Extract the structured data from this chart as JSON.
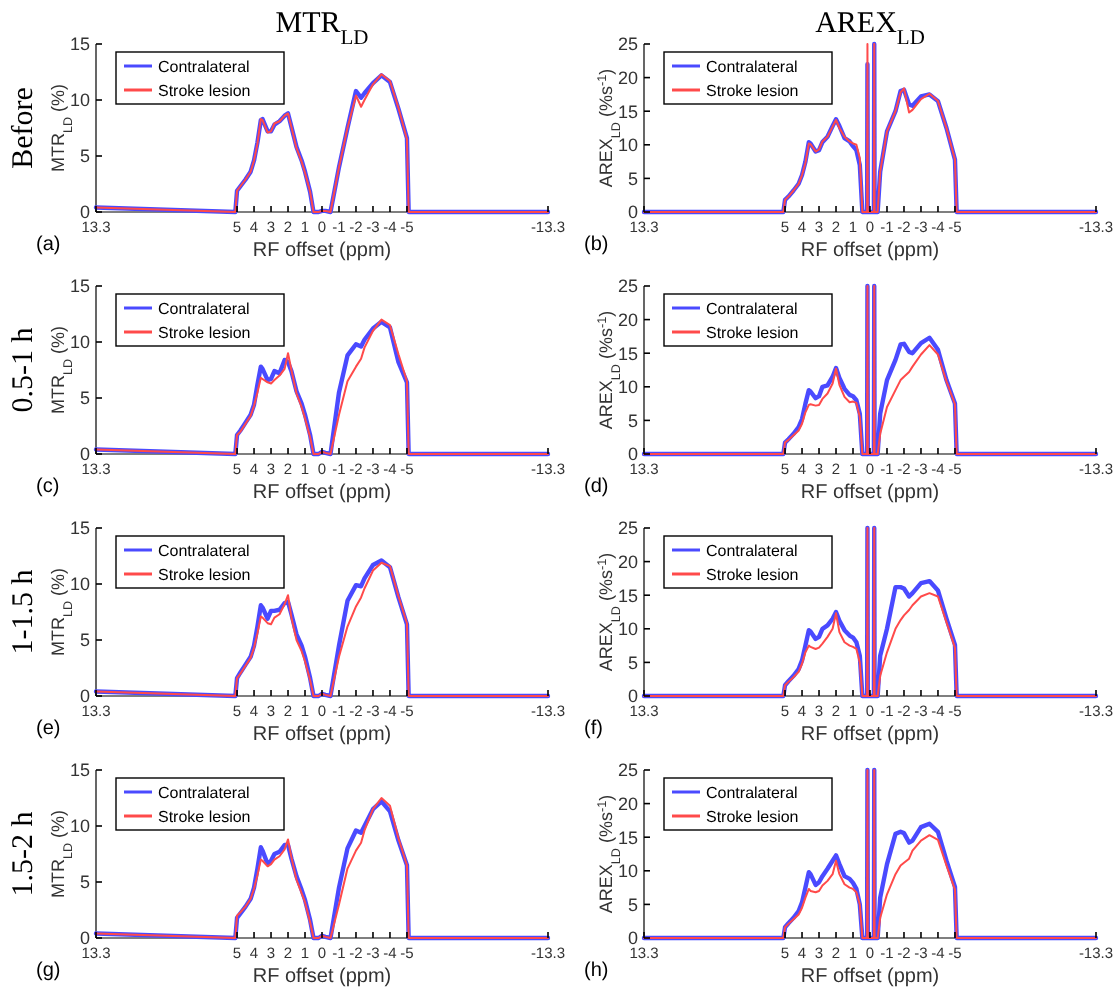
{
  "chart_data": [
    {
      "type": "line",
      "title": "MTR$_{LD}$",
      "xlabel": "RF offset (ppm)",
      "ylabel": "MTR$_{LD}$ (%)",
      "annotations": [
        "(a)",
        "Before"
      ],
      "legend": "top left",
      "xlim": [
        13.3,
        -13.3
      ],
      "xticks": [
        13.3,
        5,
        4,
        3,
        2,
        1,
        0,
        -1,
        -2,
        -3,
        -4,
        -5,
        -13.3
      ],
      "ylim": [
        0,
        15
      ],
      "yticks": [
        0,
        5,
        10,
        15
      ],
      "x": [
        13.3,
        5.1,
        5,
        4.8,
        4.5,
        4.2,
        4,
        3.8,
        3.6,
        3.5,
        3.2,
        3,
        2.8,
        2.5,
        2.2,
        2,
        1.8,
        1.5,
        1.2,
        1,
        0.7,
        0.5,
        0.2,
        0,
        -0.2,
        -0.5,
        -1,
        -1.5,
        -2,
        -2.3,
        -2.5,
        -3,
        -3.5,
        -4,
        -4.5,
        -5,
        -5.1,
        -13.3
      ],
      "series": [
        {
          "name": "Contralateral",
          "color": "#4a4aff",
          "values": [
            0.4,
            0,
            1.9,
            2.3,
            2.9,
            3.6,
            4.6,
            6.2,
            8.2,
            8.3,
            7.2,
            7.2,
            7.8,
            8.1,
            8.6,
            8.8,
            7.6,
            5.8,
            4.6,
            3.6,
            1.8,
            0,
            0,
            0.1,
            0.1,
            0,
            4,
            7.5,
            10.8,
            10.2,
            10.6,
            11.5,
            12.2,
            11.6,
            9.2,
            6.6,
            0,
            0
          ]
        },
        {
          "name": "Stroke lesion",
          "color": "#ff4a4a",
          "values": [
            0.4,
            0,
            1.9,
            2.3,
            2.9,
            3.6,
            4.6,
            6.1,
            8.3,
            8.2,
            7.1,
            7.2,
            7.9,
            8.1,
            8.6,
            8.8,
            7.6,
            5.7,
            4.5,
            3.5,
            1.8,
            0,
            0,
            0.1,
            0.1,
            0,
            4,
            7.5,
            10.4,
            9.4,
            10,
            11.4,
            12.3,
            11.7,
            9.3,
            6.5,
            0,
            0
          ]
        }
      ]
    },
    {
      "type": "line",
      "title": "AREX$_{LD}$",
      "xlabel": "RF offset (ppm)",
      "ylabel": "AREX$_{LD}$ (%s$^{-1}$)",
      "annotations": [
        "(b)"
      ],
      "legend": "top left",
      "xlim": [
        13.3,
        -13.3
      ],
      "xticks": [
        13.3,
        5,
        4,
        3,
        2,
        1,
        0,
        -1,
        -2,
        -3,
        -4,
        -5,
        -13.3
      ],
      "ylim": [
        0,
        25
      ],
      "yticks": [
        0,
        5,
        10,
        15,
        20,
        25
      ],
      "x": [
        13.3,
        5.1,
        5,
        4.8,
        4.5,
        4.2,
        4,
        3.8,
        3.6,
        3.5,
        3.2,
        3,
        2.8,
        2.5,
        2.2,
        2,
        1.8,
        1.5,
        1.2,
        1,
        0.8,
        0.6,
        0.45,
        0.17,
        0.15,
        0.13,
        -0.23,
        -0.25,
        -0.27,
        -0.45,
        -0.6,
        -1,
        -1.5,
        -1.8,
        -2,
        -2.3,
        -2.5,
        -3,
        -3.5,
        -4,
        -4.5,
        -5,
        -5.1,
        -13.3
      ],
      "series": [
        {
          "name": "Contralateral",
          "color": "#4a4aff",
          "values": [
            0,
            0,
            1.8,
            2.3,
            3.2,
            4.2,
            5.5,
            7.5,
            10.4,
            10.2,
            9.0,
            9.2,
            10.4,
            11.2,
            12.8,
            13.8,
            12.8,
            11.0,
            10.5,
            9.8,
            9.2,
            7,
            0,
            0,
            22,
            0,
            0,
            25,
            0,
            0,
            6,
            12,
            15,
            18,
            18.2,
            16,
            15.8,
            17.2,
            17.5,
            16.5,
            12.5,
            7.8,
            0,
            0
          ]
        },
        {
          "name": "Stroke lesion",
          "color": "#ff4a4a",
          "values": [
            0,
            0,
            1.8,
            2.3,
            3.2,
            4.2,
            5.5,
            7.3,
            10.2,
            10.1,
            9.0,
            9.3,
            10.5,
            11.2,
            12.7,
            13.7,
            12.5,
            11.2,
            10.5,
            10.2,
            10.0,
            8,
            0,
            0,
            25,
            0,
            0,
            25,
            0,
            0,
            6,
            12,
            15,
            17.8,
            18.4,
            14.8,
            15.2,
            16.8,
            17.6,
            16.5,
            12.5,
            7.8,
            0,
            0
          ]
        }
      ]
    },
    {
      "type": "line",
      "xlabel": "RF offset (ppm)",
      "ylabel": "MTR$_{LD}$ (%)",
      "annotations": [
        "(c)",
        "0.5-1 h"
      ],
      "legend": "top left",
      "xlim": [
        13.3,
        -13.3
      ],
      "xticks": [
        13.3,
        5,
        4,
        3,
        2,
        1,
        0,
        -1,
        -2,
        -3,
        -4,
        -5,
        -13.3
      ],
      "ylim": [
        0,
        15
      ],
      "yticks": [
        0,
        5,
        10,
        15
      ],
      "x": [
        13.3,
        5.1,
        5,
        4.8,
        4.5,
        4.2,
        4,
        3.8,
        3.6,
        3.5,
        3.2,
        3,
        2.8,
        2.5,
        2.2,
        2,
        1.8,
        1.5,
        1.2,
        1,
        0.7,
        0.5,
        0.2,
        0,
        -0.2,
        -0.5,
        -1,
        -1.5,
        -2,
        -2.3,
        -2.5,
        -3,
        -3.5,
        -4,
        -4.5,
        -5,
        -5.1,
        -13.3
      ],
      "series": [
        {
          "name": "Contralateral",
          "color": "#4a4aff",
          "values": [
            0.4,
            0,
            1.7,
            2.1,
            2.8,
            3.5,
            4.4,
            6.2,
            7.8,
            7.6,
            6.6,
            6.7,
            7.4,
            7.2,
            8.4,
            8.2,
            7.4,
            5.6,
            4.5,
            3.5,
            1.7,
            0,
            0,
            0.2,
            0.1,
            0,
            5.5,
            8.8,
            9.8,
            9.6,
            10.2,
            11.2,
            11.8,
            11.3,
            8.2,
            6.4,
            0,
            0
          ]
        },
        {
          "name": "Stroke lesion",
          "color": "#ff4a4a",
          "values": [
            0.4,
            0,
            1.7,
            2.0,
            2.7,
            3.4,
            4.3,
            5.5,
            6.8,
            6.7,
            6.4,
            6.3,
            6.6,
            7.0,
            7.6,
            9.0,
            7.5,
            5.4,
            4.2,
            3.2,
            1.5,
            0,
            0,
            0.2,
            0.1,
            0,
            3.5,
            6.5,
            7.8,
            8.5,
            9.5,
            11.0,
            12.0,
            11.5,
            8.9,
            6.5,
            0,
            0
          ]
        }
      ]
    },
    {
      "type": "line",
      "xlabel": "RF offset (ppm)",
      "ylabel": "AREX$_{LD}$ (%s$^{-1}$)",
      "annotations": [
        "(d)"
      ],
      "legend": "top left",
      "xlim": [
        13.3,
        -13.3
      ],
      "xticks": [
        13.3,
        5,
        4,
        3,
        2,
        1,
        0,
        -1,
        -2,
        -3,
        -4,
        -5,
        -13.3
      ],
      "ylim": [
        0,
        25
      ],
      "yticks": [
        0,
        5,
        10,
        15,
        20,
        25
      ],
      "x": [
        13.3,
        5.1,
        5,
        4.8,
        4.5,
        4.2,
        4,
        3.8,
        3.6,
        3.5,
        3.2,
        3,
        2.8,
        2.5,
        2.2,
        2,
        1.8,
        1.5,
        1.2,
        1,
        0.8,
        0.6,
        0.45,
        0.17,
        0.15,
        0.13,
        -0.23,
        -0.25,
        -0.27,
        -0.45,
        -0.6,
        -1,
        -1.5,
        -1.8,
        -2,
        -2.3,
        -2.5,
        -3,
        -3.5,
        -4,
        -4.5,
        -5,
        -5.1,
        -13.3
      ],
      "series": [
        {
          "name": "Contralateral",
          "color": "#4a4aff",
          "values": [
            0,
            0,
            1.7,
            2.2,
            3.0,
            4.0,
            5.2,
            7.5,
            9.5,
            9.3,
            8.3,
            8.6,
            10,
            10.2,
            11.5,
            12.8,
            11.3,
            9.7,
            8.8,
            8.6,
            8.0,
            6,
            0,
            0,
            25,
            0,
            0,
            25,
            0,
            0,
            6,
            11,
            14,
            16.3,
            16.4,
            15.2,
            15,
            16.5,
            17.3,
            15.5,
            11,
            7.5,
            0,
            0
          ]
        },
        {
          "name": "Stroke lesion",
          "color": "#ff4a4a",
          "values": [
            0,
            0,
            1.7,
            2.1,
            2.8,
            3.5,
            4.5,
            6.2,
            7.3,
            7.4,
            7.2,
            7.3,
            8.2,
            9.0,
            10.5,
            12.7,
            10.3,
            8.5,
            7.7,
            7.8,
            7.6,
            5.5,
            0,
            0,
            25,
            0,
            0,
            25,
            0,
            0,
            3,
            7,
            9.5,
            11,
            11.5,
            12.2,
            13,
            14.8,
            16.2,
            14.8,
            10.8,
            7.4,
            0,
            0
          ]
        }
      ]
    },
    {
      "type": "line",
      "xlabel": "RF offset (ppm)",
      "ylabel": "MTR$_{LD}$ (%)",
      "annotations": [
        "(e)",
        "1-1.5 h"
      ],
      "legend": "top left",
      "xlim": [
        13.3,
        -13.3
      ],
      "xticks": [
        13.3,
        5,
        4,
        3,
        2,
        1,
        0,
        -1,
        -2,
        -3,
        -4,
        -5,
        -13.3
      ],
      "ylim": [
        0,
        15
      ],
      "yticks": [
        0,
        5,
        10,
        15
      ],
      "x": [
        13.3,
        5.1,
        5,
        4.8,
        4.5,
        4.2,
        4,
        3.8,
        3.6,
        3.5,
        3.2,
        3,
        2.8,
        2.5,
        2.2,
        2,
        1.8,
        1.5,
        1.2,
        1,
        0.7,
        0.5,
        0.2,
        0,
        -0.2,
        -0.5,
        -1,
        -1.5,
        -2,
        -2.3,
        -2.5,
        -3,
        -3.5,
        -4,
        -4.5,
        -5,
        -5.1,
        -13.3
      ],
      "series": [
        {
          "name": "Contralateral",
          "color": "#4a4aff",
          "values": [
            0.4,
            0,
            1.6,
            2.1,
            2.8,
            3.5,
            4.5,
            6.2,
            8.1,
            7.9,
            6.9,
            7.6,
            7.6,
            7.7,
            8.3,
            8.4,
            7.3,
            5.5,
            4.5,
            3.5,
            1.6,
            0,
            0,
            0.2,
            0.1,
            0,
            4.5,
            8.5,
            9.9,
            9.8,
            10.5,
            11.7,
            12.1,
            11.5,
            8.8,
            6.4,
            0,
            0
          ]
        },
        {
          "name": "Stroke lesion",
          "color": "#ff4a4a",
          "values": [
            0.4,
            0,
            1.6,
            2.0,
            2.7,
            3.4,
            4.3,
            5.6,
            7.1,
            7.0,
            6.5,
            6.4,
            7.0,
            7.3,
            8.2,
            9.0,
            7.0,
            5.0,
            4.0,
            3.1,
            1.4,
            0,
            0,
            0.2,
            0.1,
            0,
            3.5,
            6.2,
            8.0,
            8.8,
            9.6,
            11.2,
            11.9,
            11.6,
            8.9,
            6.5,
            0,
            0
          ]
        }
      ]
    },
    {
      "type": "line",
      "xlabel": "RF offset (ppm)",
      "ylabel": "AREX$_{LD}$ (%s$^{-1}$)",
      "annotations": [
        "(f)"
      ],
      "legend": "top left",
      "xlim": [
        13.3,
        -13.3
      ],
      "xticks": [
        13.3,
        5,
        4,
        3,
        2,
        1,
        0,
        -1,
        -2,
        -3,
        -4,
        -5,
        -13.3
      ],
      "ylim": [
        0,
        25
      ],
      "yticks": [
        0,
        5,
        10,
        15,
        20,
        25
      ],
      "x": [
        13.3,
        5.1,
        5,
        4.8,
        4.5,
        4.2,
        4,
        3.8,
        3.6,
        3.5,
        3.2,
        3,
        2.8,
        2.5,
        2.2,
        2,
        1.8,
        1.5,
        1.2,
        1,
        0.8,
        0.6,
        0.45,
        0.17,
        0.15,
        0.13,
        -0.23,
        -0.25,
        -0.27,
        -0.45,
        -0.6,
        -1,
        -1.5,
        -1.8,
        -2,
        -2.3,
        -2.5,
        -3,
        -3.5,
        -4,
        -4.5,
        -5,
        -5.1,
        -13.3
      ],
      "series": [
        {
          "name": "Contralateral",
          "color": "#4a4aff",
          "values": [
            0,
            0,
            1.6,
            2.2,
            3.0,
            4.0,
            5.3,
            7.5,
            9.8,
            9.6,
            8.5,
            8.8,
            10,
            10.5,
            11.5,
            12.5,
            11.2,
            9.8,
            9,
            8.7,
            8,
            6,
            0,
            0,
            25,
            0,
            0,
            25,
            0,
            0,
            6,
            10,
            16.2,
            16.2,
            16,
            14.8,
            15.3,
            16.8,
            17.1,
            15.7,
            11.5,
            7.6,
            0,
            0
          ]
        },
        {
          "name": "Stroke lesion",
          "color": "#ff4a4a",
          "values": [
            0,
            0,
            1.6,
            2.1,
            2.8,
            3.6,
            4.8,
            6.5,
            7.5,
            7.3,
            7.0,
            7.2,
            7.8,
            8.8,
            10,
            12.3,
            9.5,
            8,
            7.5,
            7.3,
            7,
            5,
            0,
            0,
            25,
            0,
            0,
            25,
            0,
            0,
            3,
            6.5,
            10,
            11.3,
            12,
            12.8,
            13.5,
            14.8,
            15.3,
            14.8,
            11,
            7.2,
            0,
            0
          ]
        }
      ]
    },
    {
      "type": "line",
      "xlabel": "RF offset (ppm)",
      "ylabel": "MTR$_{LD}$ (%)",
      "annotations": [
        "(g)",
        "1.5-2 h"
      ],
      "legend": "top left",
      "xlim": [
        13.3,
        -13.3
      ],
      "xticks": [
        13.3,
        5,
        4,
        3,
        2,
        1,
        0,
        -1,
        -2,
        -3,
        -4,
        -5,
        -13.3
      ],
      "ylim": [
        0,
        15
      ],
      "yticks": [
        0,
        5,
        10,
        15
      ],
      "x": [
        13.3,
        5.1,
        5,
        4.8,
        4.5,
        4.2,
        4,
        3.8,
        3.6,
        3.5,
        3.2,
        3,
        2.8,
        2.5,
        2.2,
        2,
        1.8,
        1.5,
        1.2,
        1,
        0.7,
        0.5,
        0.2,
        0,
        -0.2,
        -0.5,
        -1,
        -1.5,
        -2,
        -2.3,
        -2.5,
        -3,
        -3.5,
        -4,
        -4.5,
        -5,
        -5.1,
        -13.3
      ],
      "series": [
        {
          "name": "Contralateral",
          "color": "#4a4aff",
          "values": [
            0.4,
            0,
            1.8,
            2.2,
            2.8,
            3.5,
            4.5,
            6.2,
            8.1,
            7.8,
            6.6,
            6.9,
            7.5,
            7.7,
            8.3,
            8.3,
            7.1,
            5.5,
            4.3,
            3.4,
            1.6,
            0,
            0,
            0.2,
            0.1,
            0,
            4.5,
            8.0,
            9.6,
            9.4,
            10.0,
            11.5,
            12.2,
            11.3,
            8.7,
            6.5,
            0,
            0
          ]
        },
        {
          "name": "Stroke lesion",
          "color": "#ff4a4a",
          "values": [
            0.4,
            0,
            2.0,
            2.3,
            2.8,
            3.5,
            4.4,
            5.6,
            7.0,
            6.9,
            6.4,
            6.6,
            7.0,
            7.3,
            7.9,
            8.8,
            7.2,
            5.2,
            4.0,
            3.2,
            1.4,
            0,
            0,
            0.2,
            0.1,
            0,
            3.0,
            6.2,
            7.8,
            8.5,
            9.6,
            11.5,
            12.5,
            11.8,
            8.9,
            6.5,
            0,
            0
          ]
        }
      ]
    },
    {
      "type": "line",
      "xlabel": "RF offset (ppm)",
      "ylabel": "AREX$_{LD}$ (%s$^{-1}$)",
      "annotations": [
        "(h)"
      ],
      "legend": "top left",
      "xlim": [
        13.3,
        -13.3
      ],
      "xticks": [
        13.3,
        5,
        4,
        3,
        2,
        1,
        0,
        -1,
        -2,
        -3,
        -4,
        -5,
        -13.3
      ],
      "ylim": [
        0,
        25
      ],
      "yticks": [
        0,
        5,
        10,
        15,
        20,
        25
      ],
      "x": [
        13.3,
        5.1,
        5,
        4.8,
        4.5,
        4.2,
        4,
        3.8,
        3.6,
        3.5,
        3.2,
        3,
        2.8,
        2.5,
        2.2,
        2,
        1.8,
        1.5,
        1.2,
        1,
        0.8,
        0.6,
        0.45,
        0.17,
        0.15,
        0.13,
        -0.23,
        -0.25,
        -0.27,
        -0.45,
        -0.6,
        -1,
        -1.5,
        -1.8,
        -2,
        -2.3,
        -2.5,
        -3,
        -3.5,
        -4,
        -4.5,
        -5,
        -5.1,
        -13.3
      ],
      "series": [
        {
          "name": "Contralateral",
          "color": "#4a4aff",
          "values": [
            0,
            0,
            1.6,
            2.2,
            3.0,
            4.0,
            5.3,
            7.5,
            9.8,
            9.5,
            7.9,
            8.3,
            9.2,
            10.3,
            11.5,
            12.3,
            11.0,
            9.2,
            8.8,
            8.2,
            7.3,
            5,
            0,
            0,
            25,
            0,
            0,
            25,
            0,
            0,
            6,
            11,
            15.5,
            15.8,
            15.6,
            14.2,
            14.5,
            16.5,
            17,
            15.8,
            11.5,
            7.6,
            0,
            0
          ]
        },
        {
          "name": "Stroke lesion",
          "color": "#ff4a4a",
          "values": [
            0,
            0,
            1.6,
            2.1,
            2.8,
            3.5,
            4.5,
            6.0,
            7.3,
            7.0,
            6.8,
            7.0,
            7.8,
            8.5,
            9.5,
            11.5,
            9.5,
            8,
            7.5,
            7.3,
            6.8,
            5,
            0,
            0,
            25,
            0,
            0,
            25,
            0,
            0,
            3,
            6.5,
            9.5,
            10.8,
            11.2,
            11.8,
            13,
            14.5,
            15.3,
            14.6,
            10.8,
            7.2,
            0,
            0
          ]
        }
      ]
    }
  ]
}
